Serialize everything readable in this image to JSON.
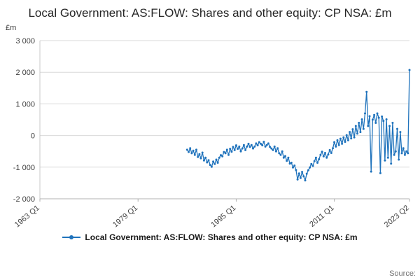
{
  "page": {
    "title": "Local Government: AS:FLOW: Shares and other equity: CP NSA: £m",
    "unit_label": "£m",
    "source_label": "Source:"
  },
  "legend": {
    "label": "Local Government: AS:FLOW: Shares and other equity: CP NSA: £m"
  },
  "chart_data": {
    "type": "line",
    "title": "Local Government: AS:FLOW: Shares and other equity: CP NSA: £m",
    "xlabel": "",
    "ylabel": "£m",
    "grid": true,
    "legend_position": "bottom",
    "x_axis": {
      "start": "1963 Q1",
      "end": "2023 Q2",
      "total_quarters": 242,
      "tick_labels": [
        "1963 Q1",
        "1979 Q1",
        "1995 Q1",
        "2011 Q1",
        "2023 Q2"
      ],
      "tick_quarter_index": [
        0,
        64,
        128,
        192,
        241
      ]
    },
    "y_axis": {
      "min": -2000,
      "max": 3000,
      "tick_values": [
        3000,
        2000,
        1000,
        0,
        -1000,
        -2000
      ],
      "tick_labels": [
        "3 000",
        "2 000",
        "1 000",
        "0",
        "-1 000",
        "-2 000"
      ]
    },
    "series": [
      {
        "name": "Local Government: AS:FLOW: Shares and other equity: CP NSA: £m",
        "color": "#2073bc",
        "start_label": "1987 Q1",
        "start_quarter_index": 96,
        "values": [
          -450,
          -520,
          -400,
          -560,
          -480,
          -610,
          -450,
          -680,
          -590,
          -720,
          -540,
          -790,
          -700,
          -850,
          -780,
          -930,
          -990,
          -820,
          -900,
          -760,
          -860,
          -700,
          -620,
          -660,
          -520,
          -560,
          -450,
          -610,
          -420,
          -510,
          -360,
          -460,
          -310,
          -420,
          -350,
          -500,
          -410,
          -300,
          -460,
          -350,
          -260,
          -360,
          -300,
          -410,
          -350,
          -250,
          -310,
          -210,
          -260,
          -310,
          -200,
          -350,
          -300,
          -250,
          -360,
          -410,
          -460,
          -350,
          -500,
          -400,
          -560,
          -610,
          -500,
          -700,
          -650,
          -800,
          -700,
          -890,
          -860,
          -1010,
          -950,
          -1090,
          -1390,
          -1200,
          -1340,
          -1150,
          -1290,
          -1420,
          -1210,
          -1100,
          -1010,
          -900,
          -960,
          -810,
          -700,
          -860,
          -750,
          -610,
          -510,
          -660,
          -550,
          -700,
          -600,
          -460,
          -550,
          -400,
          -210,
          -350,
          -150,
          -300,
          -100,
          -260,
          -60,
          -200,
          10,
          -150,
          110,
          -90,
          200,
          -60,
          300,
          60,
          400,
          110,
          510,
          210,
          700,
          1380,
          300,
          610,
          -1140,
          500,
          650,
          400,
          700,
          560,
          -1190,
          600,
          460,
          -790,
          510,
          -700,
          300,
          -890,
          400,
          -610,
          -500,
          210,
          -760,
          110,
          -560,
          -400,
          -610,
          -500,
          -560,
          2070
        ]
      }
    ]
  }
}
